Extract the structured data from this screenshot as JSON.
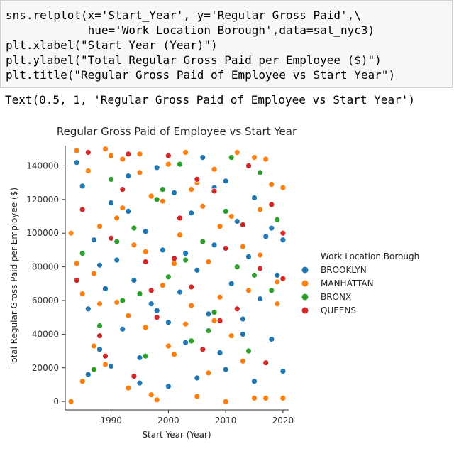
{
  "code_cell": {
    "lines": [
      "sns.relplot(x='Start_Year', y='Regular Gross Paid',\\",
      "            hue='Work Location Borough',data=sal_nyc3)",
      "plt.xlabel(\"Start Year (Year)\")",
      "plt.ylabel(\"Total Regular Gross Paid per Employee ($)\")",
      "plt.title(\"Regular Gross Paid of Employee vs Start Year\")"
    ]
  },
  "output_text": "Text(0.5, 1, 'Regular Gross Paid of Employee vs Start Year')",
  "chart_data": {
    "type": "scatter",
    "title": "Regular Gross Paid of Employee vs Start Year",
    "xlabel": "Start Year (Year)",
    "ylabel": "Total Regular Gross Paid per Employee ($)",
    "xlim": [
      1982,
      2021
    ],
    "ylim": [
      -5000,
      152000
    ],
    "xticks": [
      1990,
      2000,
      2010,
      2020
    ],
    "yticks": [
      0,
      20000,
      40000,
      60000,
      80000,
      100000,
      120000,
      140000
    ],
    "xtick_labels": [
      "1990",
      "2000",
      "2010",
      "2020"
    ],
    "ytick_labels": [
      "0",
      "20000",
      "40000",
      "60000",
      "80000",
      "100000",
      "120000",
      "140000"
    ],
    "grid": false,
    "legend": {
      "title": "Work Location Borough",
      "placement": "right",
      "entries": [
        "BROOKLYN",
        "MANHATTAN",
        "BRONX",
        "QUEENS"
      ]
    },
    "colors": {
      "BROOKLYN": "#1f77b4",
      "MANHATTAN": "#ff7f0e",
      "BRONX": "#2ca02c",
      "QUEENS": "#d62728"
    },
    "series": [
      {
        "name": "BROOKLYN",
        "x": [
          1984,
          1985,
          1986,
          1987,
          1988,
          1989,
          1990,
          1991,
          1992,
          1993,
          1994,
          1995,
          1996,
          1997,
          1998,
          1999,
          2000,
          2001,
          2002,
          2003,
          2004,
          2005,
          2006,
          2007,
          2008,
          2009,
          2010,
          2011,
          2012,
          2013,
          2014,
          2015,
          2016,
          2017,
          2018,
          2019,
          2020,
          1986,
          1990,
          1995,
          2000,
          2005,
          2010,
          2015,
          2020,
          1988,
          1993,
          1998,
          2003,
          2008,
          2013,
          2018
        ],
        "y": [
          142000,
          128000,
          55000,
          96000,
          31000,
          67000,
          118000,
          84000,
          43000,
          134000,
          72000,
          26000,
          101000,
          58000,
          139000,
          90000,
          47000,
          124000,
          65000,
          35000,
          112000,
          78000,
          145000,
          52000,
          93000,
          29000,
          131000,
          70000,
          107000,
          40000,
          86000,
          121000,
          61000,
          98000,
          37000,
          75000,
          96000,
          16000,
          21000,
          11000,
          9000,
          14000,
          19000,
          12000,
          18000,
          81000,
          113000,
          54000,
          88000,
          127000,
          49000,
          103000
        ]
      },
      {
        "name": "MANHATTAN",
        "x": [
          1983,
          1984,
          1985,
          1986,
          1987,
          1988,
          1989,
          1990,
          1991,
          1992,
          1993,
          1994,
          1995,
          1996,
          1997,
          1998,
          1999,
          2000,
          2001,
          2002,
          2003,
          2004,
          2005,
          2006,
          2007,
          2008,
          2009,
          2010,
          2011,
          2012,
          2013,
          2014,
          2015,
          2016,
          2017,
          2018,
          2019,
          2020,
          1983,
          1985,
          1987,
          1989,
          1991,
          1993,
          1995,
          1997,
          1999,
          2001,
          2003,
          2005,
          2007,
          2009,
          2011,
          2013,
          2015,
          2017,
          2019,
          1984,
          1988,
          1992,
          1996,
          2000,
          2004,
          2008,
          2012,
          2016,
          2020
        ],
        "y": [
          0,
          149000,
          12000,
          137000,
          76000,
          104000,
          22000,
          146000,
          59000,
          115000,
          8000,
          93000,
          147000,
          44000,
          122000,
          1000,
          69000,
          141000,
          28000,
          99000,
          148000,
          57000,
          3000,
          116000,
          83000,
          138000,
          62000,
          0,
          110000,
          148000,
          24000,
          66000,
          145000,
          87000,
          2000,
          129000,
          71000,
          127000,
          100000,
          64000,
          33000,
          150000,
          109000,
          51000,
          136000,
          4000,
          119000,
          82000,
          46000,
          130000,
          17000,
          104000,
          39000,
          92000,
          2000,
          144000,
          58000,
          82000,
          58000,
          144000,
          89000,
          33000,
          126000,
          48000,
          80000,
          114000,
          2000
        ]
      },
      {
        "name": "BRONX",
        "x": [
          1985,
          1988,
          1990,
          1992,
          1994,
          1996,
          1998,
          2000,
          2002,
          2004,
          2006,
          2008,
          2010,
          2012,
          2014,
          2016,
          2018,
          1987,
          1991,
          1995,
          1999,
          2003,
          2007,
          2011,
          2015,
          2019
        ],
        "y": [
          88000,
          45000,
          132000,
          60000,
          103000,
          27000,
          120000,
          74000,
          141000,
          36000,
          95000,
          53000,
          113000,
          80000,
          30000,
          136000,
          66000,
          19000,
          95000,
          64000,
          126000,
          84000,
          42000,
          145000,
          75000,
          108000
        ]
      },
      {
        "name": "QUEENS",
        "x": [
          1984,
          1986,
          1988,
          1990,
          1992,
          1994,
          1996,
          1998,
          2000,
          2002,
          2004,
          2006,
          2008,
          2010,
          2012,
          2014,
          2016,
          2018,
          2020,
          1985,
          1989,
          1993,
          1997,
          2001,
          2005,
          2009,
          2013,
          2017,
          2020
        ],
        "y": [
          72000,
          148000,
          39000,
          97000,
          126000,
          15000,
          83000,
          50000,
          146000,
          109000,
          68000,
          31000,
          125000,
          91000,
          55000,
          140000,
          79000,
          117000,
          100000,
          114000,
          27000,
          147000,
          66000,
          85000,
          132000,
          48000,
          105000,
          23000,
          73000
        ]
      }
    ]
  }
}
